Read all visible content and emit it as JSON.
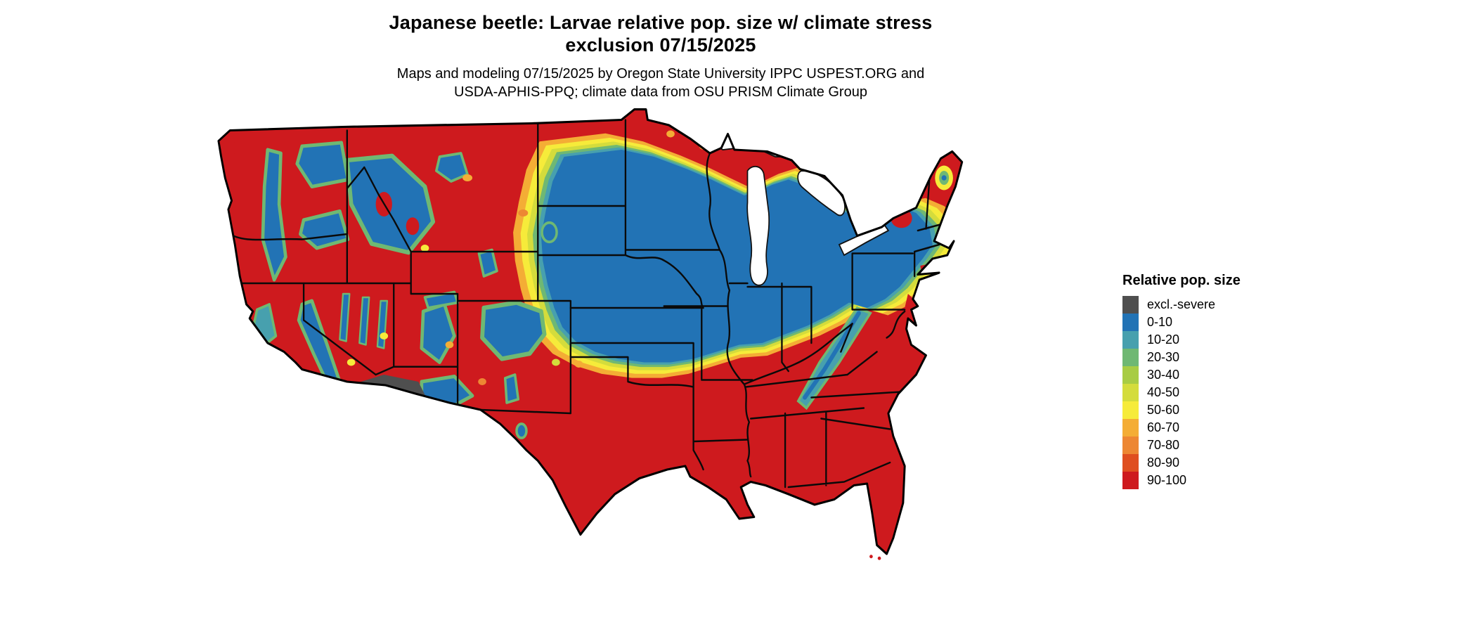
{
  "title": {
    "line1": "Japanese beetle: Larvae relative pop. size w/ climate stress",
    "line2": "exclusion 07/15/2025"
  },
  "subtitle": {
    "line1": "Maps and modeling 07/15/2025 by Oregon State University IPPC USPEST.ORG and",
    "line2": "USDA-APHIS-PPQ; climate data from OSU PRISM Climate Group"
  },
  "legend": {
    "title": "Relative pop. size",
    "items": [
      {
        "label": "excl.-severe",
        "color": "#4f4f4f"
      },
      {
        "label": "0-10",
        "color": "#2273b5"
      },
      {
        "label": "10-20",
        "color": "#47a0ae"
      },
      {
        "label": "20-30",
        "color": "#6fb873"
      },
      {
        "label": "30-40",
        "color": "#a8cc44"
      },
      {
        "label": "40-50",
        "color": "#d4dc3c"
      },
      {
        "label": "50-60",
        "color": "#f6eb3a"
      },
      {
        "label": "60-70",
        "color": "#f4ad35"
      },
      {
        "label": "70-80",
        "color": "#ed8733"
      },
      {
        "label": "80-90",
        "color": "#df4f20"
      },
      {
        "label": "90-100",
        "color": "#ce1a1e"
      }
    ]
  }
}
